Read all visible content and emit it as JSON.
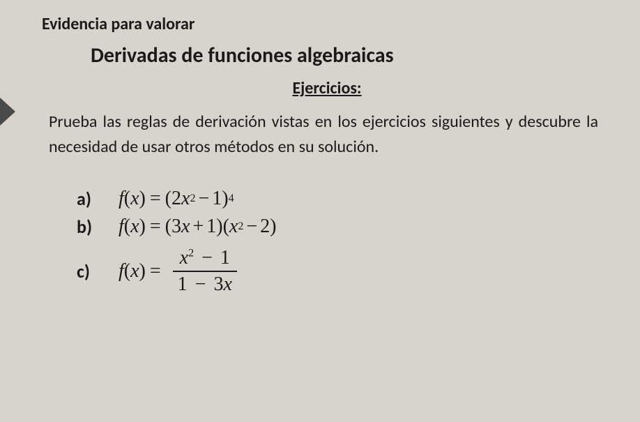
{
  "document": {
    "preTitle": "Evidencia para valorar",
    "title": "Derivadas de funciones algebraicas",
    "sectionHeading": "Ejercicios:",
    "instructions": "Prueba las reglas de derivación vistas en los ejercicios siguientes y descubre la necesidad de usar otros métodos en su solución.",
    "background_color": "#d8d4cd",
    "text_color": "#1a1a1a",
    "preTitle_fontsize": 24,
    "title_fontsize": 30,
    "section_fontsize": 24,
    "body_fontsize": 24,
    "formula_fontsize": 28
  },
  "exercises": {
    "a": {
      "label": "a)",
      "lhs_fn": "f",
      "lhs_var": "x",
      "expr_base_coeff": "2",
      "expr_base_var": "x",
      "expr_base_exp": "2",
      "expr_base_op": "−",
      "expr_base_const": "1",
      "outer_exp": "4",
      "plain": "f(x) = (2x² − 1)⁴"
    },
    "b": {
      "label": "b)",
      "lhs_fn": "f",
      "lhs_var": "x",
      "fac1_coeff": "3",
      "fac1_var": "x",
      "fac1_op": "+",
      "fac1_const": "1",
      "fac2_var": "x",
      "fac2_exp": "2",
      "fac2_op": "−",
      "fac2_const": "2",
      "plain": "f(x) = (3x + 1)(x² − 2)"
    },
    "c": {
      "label": "c)",
      "lhs_fn": "f",
      "lhs_var": "x",
      "num_var": "x",
      "num_exp": "2",
      "num_op": "−",
      "num_const": "1",
      "den_const": "1",
      "den_op": "−",
      "den_coeff": "3",
      "den_var": "x",
      "plain": "f(x) = (x² − 1)/(1 − 3x)"
    }
  }
}
